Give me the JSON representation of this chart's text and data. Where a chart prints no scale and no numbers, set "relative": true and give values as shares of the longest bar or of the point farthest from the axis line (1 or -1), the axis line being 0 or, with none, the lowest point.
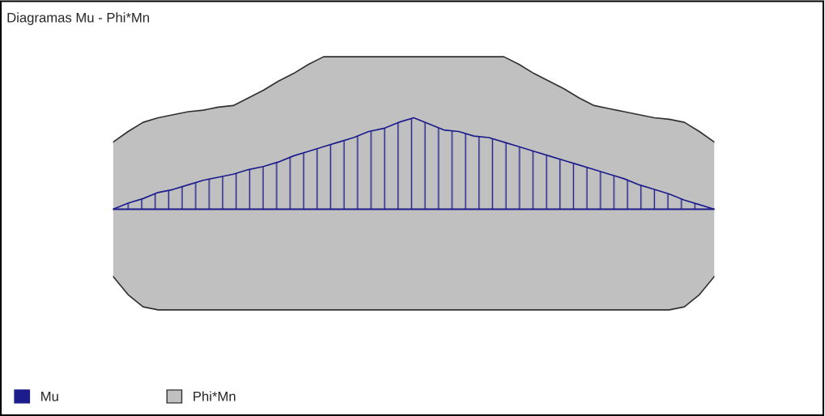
{
  "chart_data": {
    "type": "area",
    "title": "Diagramas Mu - Phi*Mn",
    "relative": true,
    "legend": "bottom left",
    "grid": false,
    "categories": [
      null,
      null,
      null,
      null,
      null,
      null,
      null,
      null,
      null,
      null,
      null,
      null,
      null,
      null,
      null,
      null,
      null,
      null,
      null,
      null,
      null,
      null,
      null,
      null,
      null,
      null,
      null,
      null,
      null,
      null,
      null,
      null,
      null,
      null,
      null,
      null,
      null,
      null,
      null,
      null,
      null
    ],
    "series": [
      {
        "name": "Phi*Mn",
        "color": "#c0c0c0",
        "values": [
          0.44,
          0.51,
          0.57,
          0.6,
          0.62,
          0.64,
          0.65,
          0.67,
          0.68,
          0.73,
          0.78,
          0.84,
          0.89,
          0.95,
          1,
          1,
          1,
          1,
          1,
          1,
          1,
          1,
          1,
          1,
          1,
          1,
          1,
          0.95,
          0.89,
          0.84,
          0.79,
          0.73,
          0.68,
          0.66,
          0.64,
          0.62,
          0.6,
          0.59,
          0.57,
          0.51,
          0.44
        ]
      },
      {
        "color": "#c0c0c0",
        "values": [
          -0.44,
          -0.56,
          -0.64,
          -0.66,
          -0.66,
          -0.66,
          -0.66,
          -0.66,
          -0.66,
          -0.66,
          -0.66,
          -0.66,
          -0.66,
          -0.66,
          -0.66,
          -0.66,
          -0.66,
          -0.66,
          -0.66,
          -0.66,
          -0.66,
          -0.66,
          -0.66,
          -0.66,
          -0.66,
          -0.66,
          -0.66,
          -0.66,
          -0.66,
          -0.66,
          -0.66,
          -0.66,
          -0.66,
          -0.66,
          -0.66,
          -0.66,
          -0.66,
          -0.66,
          -0.64,
          -0.56,
          -0.44
        ]
      },
      {
        "name": "Mu",
        "color": "#1c1c8c",
        "values": [
          0,
          0.04,
          0.07,
          0.11,
          0.13,
          0.16,
          0.19,
          0.21,
          0.23,
          0.26,
          0.28,
          0.31,
          0.35,
          0.38,
          0.41,
          0.44,
          0.47,
          0.51,
          0.53,
          0.57,
          0.6,
          0.56,
          0.52,
          0.51,
          0.48,
          0.47,
          0.44,
          0.41,
          0.38,
          0.35,
          0.32,
          0.29,
          0.26,
          0.23,
          0.2,
          0.16,
          0.13,
          0.1,
          0.06,
          0.03,
          0
        ]
      }
    ]
  }
}
